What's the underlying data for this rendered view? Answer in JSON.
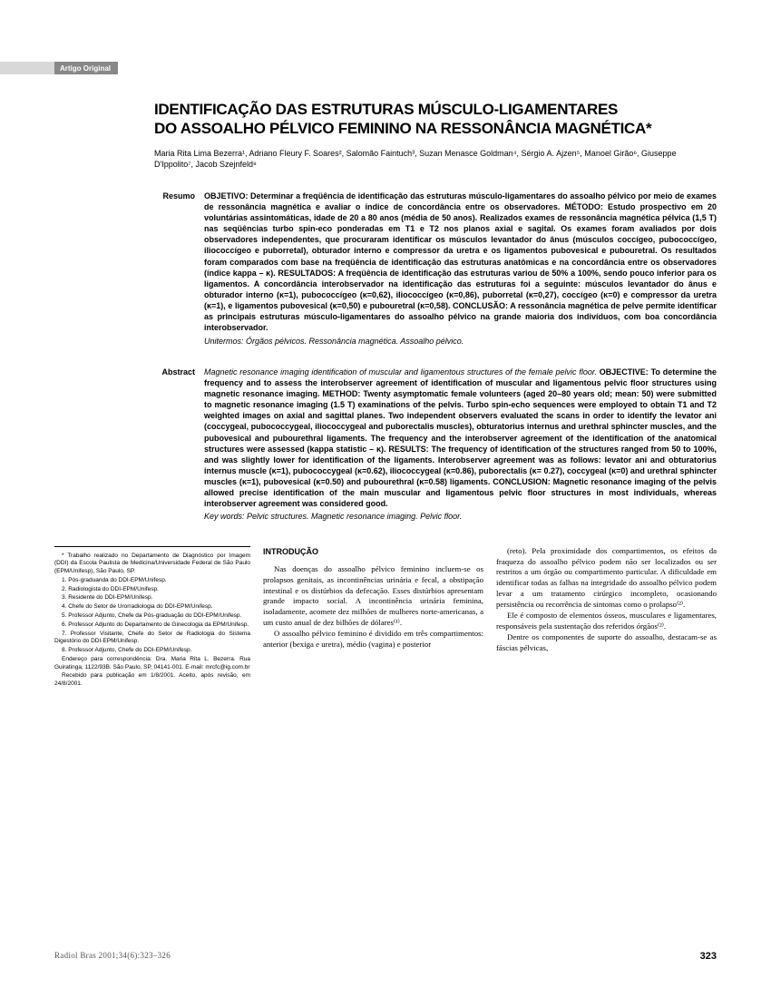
{
  "tag": "Artigo Original",
  "title_line1": "IDENTIFICAÇÃO DAS ESTRUTURAS MÚSCULO-LIGAMENTARES",
  "title_line2": "DO ASSOALHO PÉLVICO FEMININO NA RESSONÂNCIA MAGNÉTICA*",
  "authors": "Maria Rita Lima Bezerra¹, Adriano Fleury F. Soares², Salomão Faintuch³, Suzan Menasce Goldman⁴, Sérgio A. Ajzen⁵, Manoel Girão⁶, Giuseppe D'Ippolito⁷, Jacob Szejnfeld⁸",
  "resumo_label": "Resumo",
  "resumo_body": "OBJETIVO: Determinar a freqüência de identificação das estruturas músculo-ligamentares do assoalho pélvico por meio de exames de ressonância magnética e avaliar o índice de concordância entre os observadores. MÉTODO: Estudo prospectivo em 20 voluntárias assintomáticas, idade de 20 a 80 anos (média de 50 anos). Realizados exames de ressonância magnética pélvica (1,5 T) nas seqüências turbo spin-eco ponderadas em T1 e T2 nos planos axial e sagital. Os exames foram avaliados por dois observadores independentes, que procuraram identificar os músculos levantador do ânus (músculos coccígeo, pubococcígeo, iliococcígeo e puborretal), obturador interno e compressor da uretra e os ligamentos pubovesical e pubouretral. Os resultados foram comparados com base na freqüência de identificação das estruturas anatômicas e na concordância entre os observadores (índice kappa – κ). RESULTADOS: A freqüência de identificação das estruturas variou de 50% a 100%, sendo pouco inferior para os ligamentos. A concordância interobservador na identificação das estruturas foi a seguinte: músculos levantador do ânus e obturador interno (κ=1), pubococcígeo (κ=0,62), iliococcígeo (κ=0,86), puborretal (κ=0,27), coccígeo (κ=0) e compressor da uretra (κ=1), e ligamentos pubovesical (κ=0,50) e pubouretral (κ=0,58). CONCLUSÃO: A ressonância magnética de pelve permite identificar as principais estruturas músculo-ligamentares do assoalho pélvico na grande maioria dos indivíduos, com boa concordância interobservador.",
  "resumo_keywords": "Unitermos: Órgãos pélvicos. Ressonância magnética. Assoalho pélvico.",
  "abstract_label": "Abstract",
  "abstract_lead": "Magnetic resonance imaging identification of muscular and ligamentous structures of the female pelvic floor.",
  "abstract_body": "OBJECTIVE: To determine the frequency and to assess the interobserver agreement of identification of muscular and ligamentous pelvic floor structures using magnetic resonance imaging. METHOD: Twenty asymptomatic female volunteers (aged 20–80 years old; mean: 50) were submitted to magnetic resonance imaging (1.5 T) examinations of the pelvis. Turbo spin-echo sequences were employed to obtain T1 and T2 weighted images on axial and sagittal planes. Two independent observers evaluated the scans in order to identify the levator ani (coccygeal, pubococcygeal, iliococcygeal and puborectalis muscles), obturatorius internus and urethral sphincter muscles, and the pubovesical and pubourethral ligaments. The frequency and the interobserver agreement of the identification of the anatomical structures were assessed (kappa statistic – κ). RESULTS: The frequency of identification of the structures ranged from 50 to 100%, and was slightly lower for identification of the ligaments. Interobserver agreement was as follows: levator ani and obturatorius internus muscle (κ=1), pubococcygeal (κ=0.62), iliococcygeal (κ=0.86), puborectalis (κ= 0.27), coccygeal (κ=0) and urethral sphincter muscles (κ=1), pubovesical (κ=0.50) and pubourethral (κ=0.58) ligaments. CONCLUSION: Magnetic resonance imaging of the pelvis allowed precise identification of the main muscular and ligamentous pelvic floor structures in most individuals, whereas interobserver agreement was considered good.",
  "abstract_keywords": "Key words: Pelvic structures. Magnetic resonance imaging. Pelvic floor.",
  "intro_heading": "INTRODUÇÃO",
  "intro_p1": "Nas doenças do assoalho pélvico feminino incluem-se os prolapsos genitais, as incontinências urinária e fecal, a obstipação intestinal e os distúrbios da defecação. Esses distúrbios apresentam grande impacto social. A incontinência urinária feminina, isoladamente, acomete dez milhões de mulheres norte-americanas, a um custo anual de dez bilhões de dólares⁽¹⁾.",
  "intro_p2": "O assoalho pélvico feminino é dividido em três compartimentos: anterior (bexiga e uretra), médio (vagina) e posterior",
  "col2_p1": "(reto). Pela proximidade dos compartimentos, os efeitos da fraqueza do assoalho pélvico podem não ser localizados ou ser restritos a um órgão ou compartimento particular. A dificuldade em identificar todas as falhas na integridade do assoalho pélvico podem levar a um tratamento cirúrgico incompleto, ocasionando persistência ou recorrência de sintomas como o prolapso⁽²⁾.",
  "col2_p2": "Ele é composto de elementos ósseos, musculares e ligamentares, responsáveis pela sustentação dos referidos órgãos⁽²⁾.",
  "col2_p3": "Dentre os componentes de suporte do assoalho, destacam-se as fáscias pélvicas,",
  "footnotes": [
    "* Trabalho realizado no Departamento de Diagnóstico por Imagem (DDI) da Escola Paulista de Medicina/Universidade Federal de São Paulo (EPM/Unifesp), São Paulo, SP.",
    "1. Pós-graduanda do DDI-EPM/Unifesp.",
    "2. Radiologista do DDI-EPM/Unifesp.",
    "3. Residente do DDI-EPM/Unifesp.",
    "4. Chefe do Setor de Urorradiologia do DDI-EPM/Unifesp.",
    "5. Professor Adjunto, Chefe da Pós-graduação do DDI-EPM/Unifesp.",
    "6. Professor Adjunto do Departamento de Ginecologia da EPM/Unifesp.",
    "7. Professor Visitante, Chefe do Setor de Radiologia do Sistema Digestório do DDI-EPM/Unifesp.",
    "8. Professor Adjunto, Chefe do DDI-EPM/Unifesp.",
    "Endereço para correspondência: Dra. Maria Rita L. Bezerra. Rua Guiratinga, 1122/93B. São Paulo, SP, 04141-001. E-mail: mrcfc@ig.com.br",
    "Recebido para publicação em 1/8/2001. Aceito, após revisão, em 24/8/2001."
  ],
  "journal_ref": "Radiol Bras 2001;34(6):323–326",
  "page_number": "323",
  "colors": {
    "tag_light": "#d8d8d8",
    "tag_dark": "#888888",
    "text": "#000000",
    "bg": "#ffffff"
  }
}
